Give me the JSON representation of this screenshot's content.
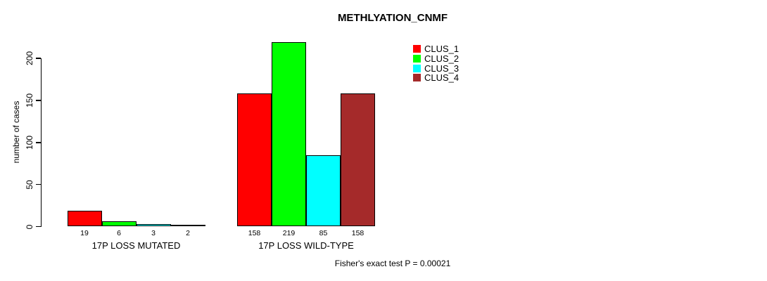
{
  "chart_data": {
    "type": "bar",
    "title": "METHLYATION_CNMF",
    "ylabel": "number of cases",
    "xlabel": "",
    "footer": "Fisher's exact test P = 0.00021",
    "categories": [
      "17P LOSS MUTATED",
      "17P LOSS WILD-TYPE"
    ],
    "series": [
      {
        "name": "CLUS_1",
        "color": "#ff0000",
        "values": [
          19,
          158
        ]
      },
      {
        "name": "CLUS_2",
        "color": "#00ff00",
        "values": [
          6,
          219
        ]
      },
      {
        "name": "CLUS_3",
        "color": "#00ffff",
        "values": [
          3,
          85
        ]
      },
      {
        "name": "CLUS_4",
        "color": "#a52a2a",
        "values": [
          2,
          158
        ]
      }
    ],
    "y_ticks": [
      0,
      50,
      100,
      150,
      200
    ],
    "ylim": [
      0,
      220
    ],
    "grid": false,
    "bar_value_labels": true,
    "legend_position": "top-right",
    "legend_entries": [
      "CLUS_1",
      "CLUS_2",
      "CLUS_3",
      "CLUS_4"
    ]
  }
}
